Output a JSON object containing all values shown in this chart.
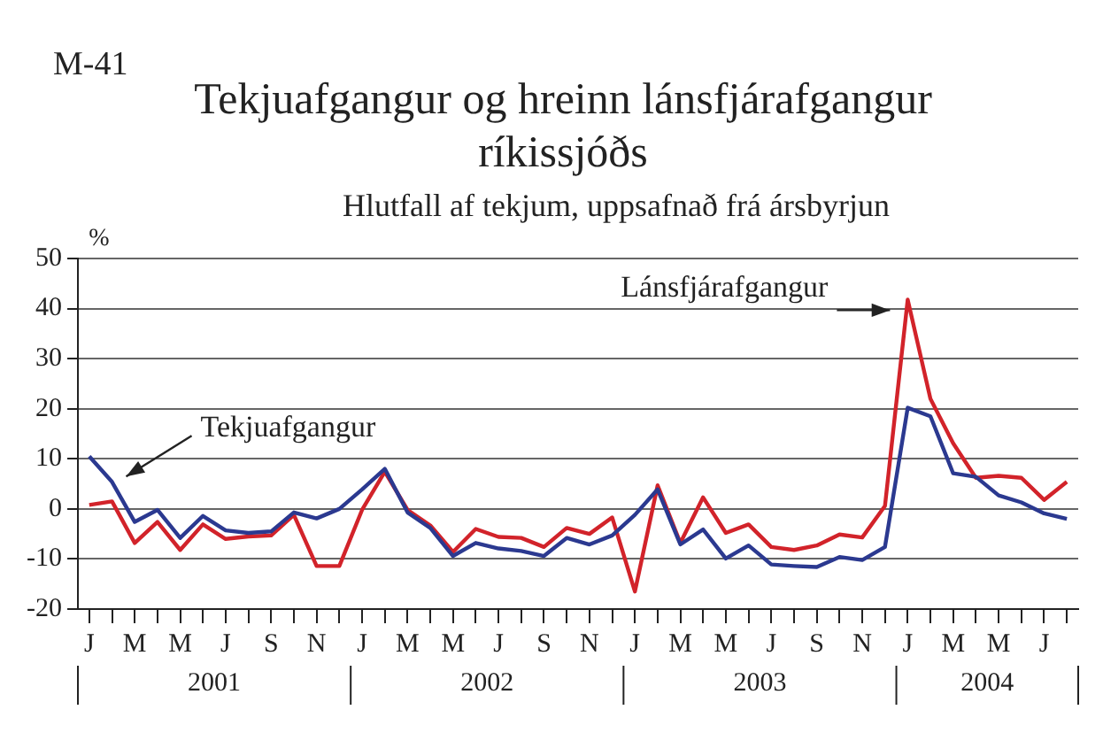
{
  "chart_data": {
    "type": "line",
    "title": "Tekjuafgangur og hreinn lánsfjárafgangur ríkissjóðs",
    "subtitle": "Hlutfall af tekjum, uppsafnað frá ársbyrjun",
    "ylabel": "%",
    "annotations": [
      "M-41",
      "2001",
      "2002",
      "2003",
      "2004"
    ],
    "categories": [
      "J",
      null,
      "M",
      null,
      "M",
      null,
      "J",
      null,
      "S",
      null,
      "N",
      null,
      "J",
      null,
      "M",
      null,
      "M",
      null,
      "J",
      null,
      "S",
      null,
      "N",
      null,
      "J",
      null,
      "M",
      null,
      "M",
      null,
      "J",
      null,
      "S",
      null,
      "N",
      null,
      "J",
      null,
      "M",
      null,
      "M",
      null,
      "J",
      null
    ],
    "series": [
      {
        "name": "Tekjuafgangur",
        "color": "#2b3990",
        "values": [
          10.5,
          5.4,
          -2.6,
          -0.2,
          -5.8,
          -1.4,
          -4.3,
          -4.8,
          -4.5,
          -0.7,
          -1.9,
          0,
          3.9,
          8,
          -0.7,
          -3.8,
          -9.4,
          -6.8,
          -7.9,
          -8.4,
          -9.4,
          -5.8,
          -7.1,
          -5.3,
          -1.2,
          3.9,
          -7.1,
          -4.1,
          -9.9,
          -7.3,
          -11.1,
          -11.4,
          -11.6,
          -9.6,
          -10.2,
          -7.6,
          20.2,
          18.5,
          7.1,
          6.4,
          2.7,
          1.3,
          -0.9,
          -2.0
        ]
      },
      {
        "name": "Lánsfjárafgangur",
        "color": "#d2232a",
        "values": [
          0.8,
          1.5,
          -6.8,
          -2.6,
          -8.2,
          -3.1,
          -6.0,
          -5.5,
          -5.3,
          -1.2,
          -11.4,
          -11.4,
          -0.2,
          7.4,
          -0.2,
          -3.3,
          -8.6,
          -4.0,
          -5.6,
          -5.8,
          -7.6,
          -3.8,
          -5.0,
          -1.7,
          -16.5,
          4.7,
          -6.8,
          2.3,
          -4.8,
          -3.1,
          -7.6,
          -8.2,
          -7.3,
          -5.1,
          -5.7,
          0.6,
          41.8,
          22.0,
          13.1,
          6.2,
          6.6,
          6.2,
          1.8,
          5.4
        ]
      }
    ],
    "ylim": [
      -20,
      50
    ],
    "yticks": [
      -20,
      -10,
      0,
      10,
      20,
      30,
      40,
      50
    ],
    "grid": "y",
    "legend": false,
    "marker": "none",
    "line_style": "solid"
  }
}
